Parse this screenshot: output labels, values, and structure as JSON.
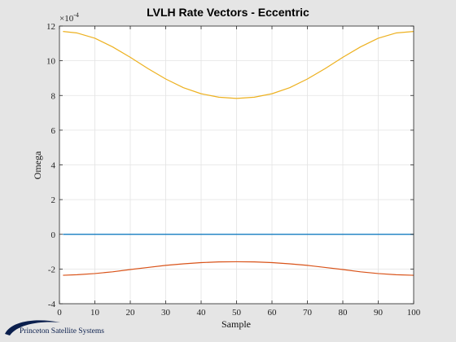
{
  "footer": {
    "logo_text": "Princeton Satellite Systems"
  },
  "chart_data": {
    "type": "line",
    "title": "LVLH Rate Vectors - Eccentric",
    "xlabel": "Sample",
    "ylabel": "Omega",
    "exponent_label": "×10",
    "exponent_power": "-4",
    "xlim": [
      0,
      100
    ],
    "ylim": [
      -4,
      12
    ],
    "x_ticks": [
      0,
      10,
      20,
      30,
      40,
      50,
      60,
      70,
      80,
      90,
      100
    ],
    "y_ticks": [
      -4,
      -2,
      0,
      2,
      4,
      6,
      8,
      10,
      12
    ],
    "grid": true,
    "x": [
      1,
      5,
      10,
      15,
      20,
      25,
      30,
      35,
      40,
      45,
      50,
      55,
      60,
      65,
      70,
      75,
      80,
      85,
      90,
      95,
      100
    ],
    "series": [
      {
        "color": "#0072bd",
        "values": [
          0,
          0,
          0,
          0,
          0,
          0,
          0,
          0,
          0,
          0,
          0,
          0,
          0,
          0,
          0,
          0,
          0,
          0,
          0,
          0,
          0
        ]
      },
      {
        "color": "#d95319",
        "values": [
          -2.36,
          -2.33,
          -2.26,
          -2.16,
          -2.03,
          -1.91,
          -1.79,
          -1.7,
          -1.63,
          -1.59,
          -1.58,
          -1.59,
          -1.63,
          -1.7,
          -1.79,
          -1.91,
          -2.03,
          -2.16,
          -2.26,
          -2.33,
          -2.36
        ]
      },
      {
        "color": "#edb120",
        "values": [
          11.69,
          11.6,
          11.3,
          10.8,
          10.2,
          9.55,
          8.95,
          8.45,
          8.1,
          7.9,
          7.83,
          7.9,
          8.1,
          8.45,
          8.95,
          9.55,
          10.2,
          10.8,
          11.3,
          11.6,
          11.69
        ]
      }
    ]
  }
}
